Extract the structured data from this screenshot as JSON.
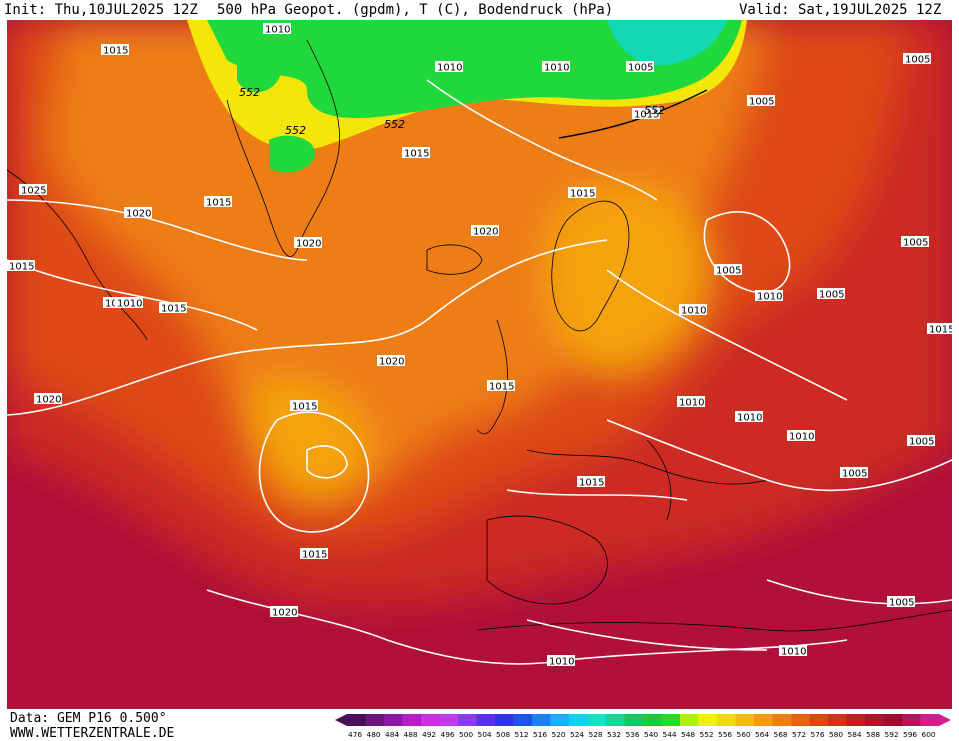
{
  "header": {
    "init": "Init: Thu,10JUL2025 12Z",
    "title": "500 hPa Geopot. (gpdm), T (C), Bodendruck (hPa)",
    "valid": "Valid: Sat,19JUL2025 12Z"
  },
  "footer": {
    "data_source": "Data: GEM P16 0.500°",
    "website": "WWW.WETTERZENTRALE.DE"
  },
  "colorbar": {
    "levels": [
      "476",
      "480",
      "484",
      "488",
      "492",
      "496",
      "500",
      "504",
      "508",
      "512",
      "516",
      "520",
      "524",
      "528",
      "532",
      "536",
      "540",
      "544",
      "548",
      "552",
      "556",
      "560",
      "564",
      "568",
      "572",
      "576",
      "580",
      "584",
      "588",
      "592",
      "596",
      "600"
    ],
    "colors": [
      "#4b0e59",
      "#6c127d",
      "#8e17a4",
      "#b51ec8",
      "#d32de2",
      "#c43cf0",
      "#8c3cf0",
      "#5a30f0",
      "#2f32e8",
      "#1c55ee",
      "#1c82f4",
      "#19aef8",
      "#12d2f0",
      "#14e3c8",
      "#14d796",
      "#10c85f",
      "#1ac83c",
      "#28dc28",
      "#aef00c",
      "#f0f00a",
      "#f0d80a",
      "#f5b90c",
      "#f59a0d",
      "#f07e0e",
      "#e6640f",
      "#dc4a14",
      "#d23219",
      "#c41e1e",
      "#b01428",
      "#a00c32",
      "#b4145a",
      "#d21e8c"
    ]
  },
  "isobar_labels": [
    "1010",
    "1015",
    "1010",
    "1005",
    "1010",
    "1005",
    "1015",
    "1005",
    "1025",
    "1020",
    "1015",
    "1015",
    "1020",
    "1020",
    "1015",
    "1005",
    "1015",
    "1010",
    "1010",
    "1010",
    "1015",
    "1005",
    "1005",
    "1020",
    "1020",
    "1015",
    "1015",
    "1010",
    "1010",
    "1010",
    "1005",
    "1005",
    "1015",
    "1015",
    "1020",
    "1005",
    "1010",
    "1010",
    "1015",
    "1010"
  ],
  "geopotential_labels": [
    "552",
    "552",
    "552",
    "552"
  ],
  "colors": {
    "deep_red": "#b0103a",
    "red": "#cc2a22",
    "orange_red": "#de4a16",
    "orange": "#ee7d12",
    "light_orange": "#f5a310",
    "yellow": "#f5e60a",
    "green": "#20d83c",
    "cyan": "#14d8b4"
  }
}
